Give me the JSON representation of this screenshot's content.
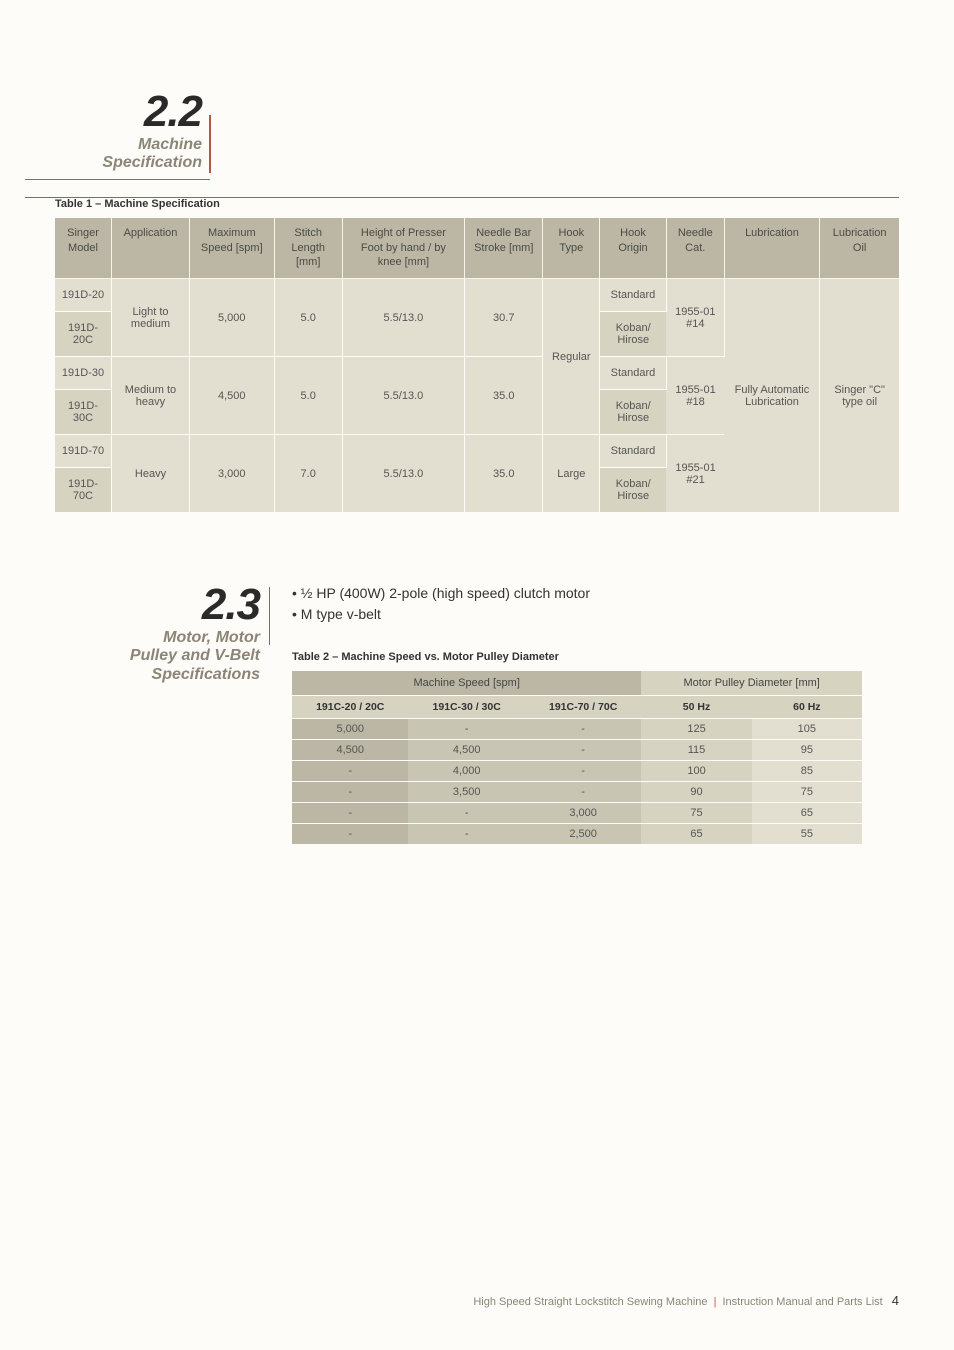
{
  "section22": {
    "num": "2.2",
    "sub1": "Machine",
    "sub2": "Specification"
  },
  "table1": {
    "caption": "Table 1 – Machine Specification",
    "headers": [
      "Singer Model",
      "Application",
      "Maximum Speed [spm]",
      "Stitch Length [mm]",
      "Height of Presser Foot by hand / by knee [mm]",
      "Needle Bar Stroke [mm]",
      "Hook Type",
      "Hook Origin",
      "Needle Cat.",
      "Lubrication",
      "Lubrication Oil"
    ],
    "models": [
      "191D-20",
      "191D-20C",
      "191D-30",
      "191D-30C",
      "191D-70",
      "191D-70C"
    ],
    "apps": [
      "Light to medium",
      "Medium to heavy",
      "Heavy"
    ],
    "speeds": [
      "5,000",
      "4,500",
      "3,000"
    ],
    "stitch": [
      "5.0",
      "5.0",
      "7.0"
    ],
    "presser": [
      "5.5/13.0",
      "5.5/13.0",
      "5.5/13.0"
    ],
    "needlebar": [
      "30.7",
      "35.0",
      "35.0"
    ],
    "hooktype": [
      "Regular",
      "Large"
    ],
    "hookorigin_std": "Standard",
    "hookorigin_kh": "Koban/ Hirose",
    "needlecat": [
      "1955-01 #14",
      "1955-01 #18",
      "1955-01 #21"
    ],
    "lubrication": "Fully Automatic Lubrication",
    "oil": "Singer \"C\" type oil"
  },
  "section23": {
    "num": "2.3",
    "sub1": "Motor, Motor",
    "sub2": "Pulley and V-Belt",
    "sub3": "Specifications",
    "bullet1": "• ½ HP (400W) 2-pole (high speed) clutch motor",
    "bullet2": "• M type v-belt"
  },
  "table2": {
    "caption": "Table 2 – Machine Speed vs. Motor Pulley Diameter",
    "top_spm": "Machine Speed [spm]",
    "top_mpd": "Motor Pulley Diameter [mm]",
    "sub": [
      "191C-20 / 20C",
      "191C-30 / 30C",
      "191C-70 / 70C",
      "50 Hz",
      "60 Hz"
    ],
    "rows": [
      [
        "5,000",
        "-",
        "-",
        "125",
        "105"
      ],
      [
        "4,500",
        "4,500",
        "-",
        "115",
        "95"
      ],
      [
        "-",
        "4,000",
        "-",
        "100",
        "85"
      ],
      [
        "-",
        "3,500",
        "-",
        "90",
        "75"
      ],
      [
        "-",
        "-",
        "3,000",
        "75",
        "65"
      ],
      [
        "-",
        "-",
        "2,500",
        "65",
        "55"
      ]
    ]
  },
  "footer": {
    "title": "High Speed Straight Lockstitch Sewing Machine",
    "sub": "Instruction Manual and Parts List",
    "page": "4"
  },
  "colors": {
    "accent": "#b25a3c",
    "header_bg": "#bbb7a4",
    "row_light": "#e2dfd0",
    "row_dark": "#d6d3c1"
  }
}
